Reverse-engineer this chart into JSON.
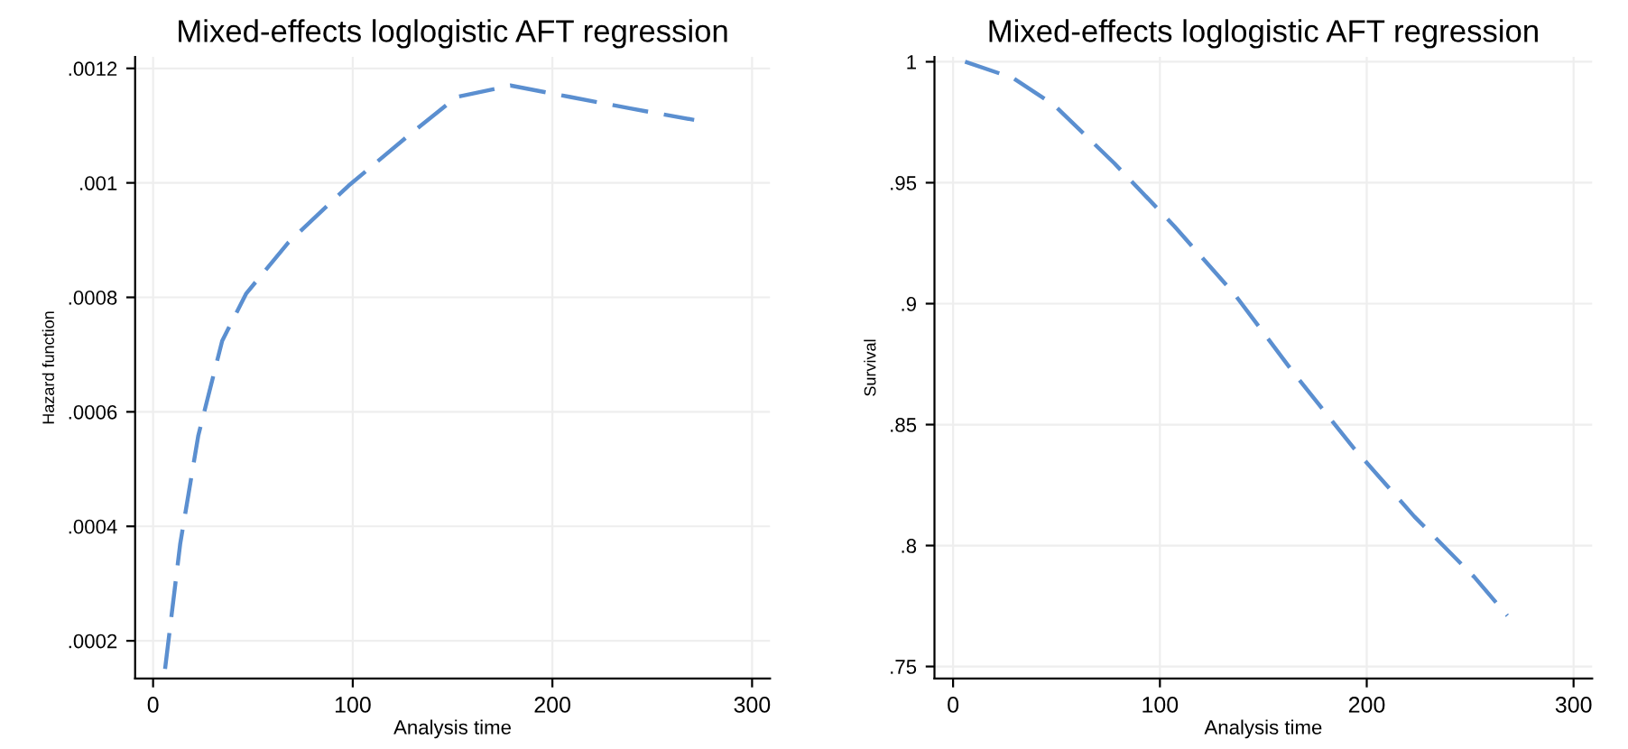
{
  "chart_data": [
    {
      "type": "line",
      "title": "Mixed-effects loglogistic AFT regression",
      "xlabel": "Analysis time",
      "ylabel": "Hazard function",
      "xlim": [
        -9,
        309
      ],
      "xticks": [
        0,
        100,
        200,
        300
      ],
      "ylim": [
        0.000134,
        0.00122
      ],
      "yticks": [
        {
          "value": 0.0002,
          "label": ".0002"
        },
        {
          "value": 0.0004,
          "label": ".0004"
        },
        {
          "value": 0.0006,
          "label": ".0006"
        },
        {
          "value": 0.0008,
          "label": ".0008"
        },
        {
          "value": 0.001,
          "label": ".001"
        },
        {
          "value": 0.0012,
          "label": ".0012"
        }
      ],
      "grid": true,
      "line_style": "dashed",
      "series": [
        {
          "color": "#5b8fd0",
          "x": [
            6,
            13.6,
            22.6,
            34.6,
            46.7,
            67.8,
            97.9,
            128,
            152,
            179,
            209,
            239,
            271
          ],
          "values": [
            0.000151,
            0.00037,
            0.000558,
            0.000724,
            0.000807,
            0.000896,
            0.000995,
            0.001083,
            0.00115,
            0.00117,
            0.00115,
            0.00113,
            0.00111
          ]
        }
      ]
    },
    {
      "type": "line",
      "title": "Mixed-effects loglogistic AFT regression",
      "xlabel": "Analysis time",
      "ylabel": "Survival",
      "xlim": [
        -9,
        309
      ],
      "xticks": [
        0,
        100,
        200,
        300
      ],
      "ylim": [
        0.745,
        1.002
      ],
      "yticks": [
        {
          "value": 0.75,
          "label": ".75"
        },
        {
          "value": 0.8,
          "label": ".8"
        },
        {
          "value": 0.85,
          "label": ".85"
        },
        {
          "value": 0.9,
          "label": ".9"
        },
        {
          "value": 0.95,
          "label": ".95"
        },
        {
          "value": 1,
          "label": "1"
        }
      ],
      "grid": true,
      "line_style": "dashed",
      "series": [
        {
          "color": "#5b8fd0",
          "x": [
            5.8,
            29,
            49,
            78,
            107,
            136,
            165,
            194,
            223,
            252,
            268
          ],
          "values": [
            1.0,
            0.9933,
            0.982,
            0.958,
            0.932,
            0.904,
            0.871,
            0.84,
            0.812,
            0.787,
            0.771
          ]
        }
      ]
    }
  ]
}
